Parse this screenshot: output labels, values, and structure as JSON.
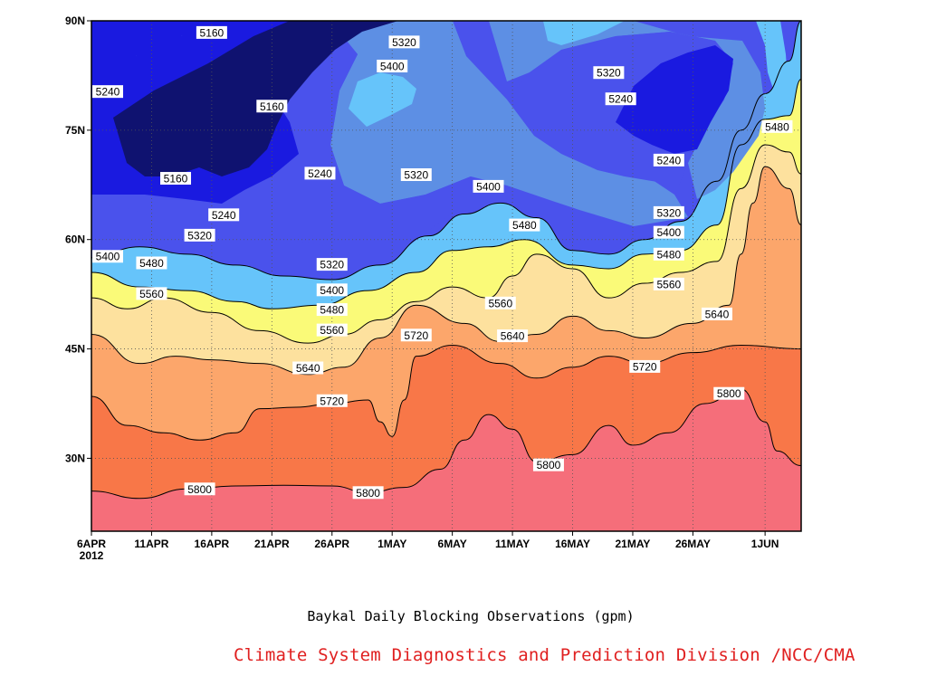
{
  "chart_data": {
    "type": "heatmap",
    "subtype": "filled-contour (latitude-time section)",
    "title": "Baykal Daily Blocking Observations (gpm)",
    "credit": "Climate System Diagnostics and Prediction Division /NCC/CMA",
    "x_axis": {
      "quantity": "date",
      "range": [
        "2012-04-06",
        "2012-06-04"
      ],
      "ticks": [
        "6APR",
        "11APR",
        "16APR",
        "21APR",
        "26APR",
        "1MAY",
        "6MAY",
        "11MAY",
        "16MAY",
        "21MAY",
        "26MAY",
        "1JUN"
      ],
      "tick_dates": [
        "2012-04-06",
        "2012-04-11",
        "2012-04-16",
        "2012-04-21",
        "2012-04-26",
        "2012-05-01",
        "2012-05-06",
        "2012-05-11",
        "2012-05-16",
        "2012-05-21",
        "2012-05-26",
        "2012-06-01"
      ],
      "year_label": "2012"
    },
    "y_axis": {
      "quantity": "latitude",
      "range_deg_n": [
        20,
        90
      ],
      "ticks": [
        "30N",
        "45N",
        "60N",
        "75N",
        "90N"
      ],
      "tick_values": [
        30,
        45,
        60,
        75,
        90
      ]
    },
    "grid": "dotted",
    "contour_levels": [
      5160,
      5240,
      5320,
      5400,
      5480,
      5560,
      5640,
      5720,
      5800
    ],
    "fill_colors": [
      "#0f1270",
      "#1a1ae0",
      "#4a52ec",
      "#5d8fe4",
      "#66c4fa",
      "#fafa78",
      "#fde19e",
      "#fca66b",
      "#f87748",
      "#f56e7a"
    ],
    "contour_lines": [
      {
        "level": 5800,
        "points": [
          [
            "2012-04-06",
            25.5
          ],
          [
            "2012-04-10",
            24.5
          ],
          [
            "2012-04-14",
            25.8
          ],
          [
            "2012-04-18",
            26.2
          ],
          [
            "2012-04-22",
            26.3
          ],
          [
            "2012-04-26",
            26.2
          ],
          [
            "2012-04-29",
            25.3
          ],
          [
            "2012-05-02",
            26
          ],
          [
            "2012-05-05",
            28.5
          ],
          [
            "2012-05-07",
            32.5
          ],
          [
            "2012-05-09",
            36
          ],
          [
            "2012-05-11",
            34
          ],
          [
            "2012-05-13",
            29.5
          ],
          [
            "2012-05-16",
            30.5
          ],
          [
            "2012-05-19",
            34.5
          ],
          [
            "2012-05-21",
            31.8
          ],
          [
            "2012-05-24",
            33.5
          ],
          [
            "2012-05-27",
            37.5
          ],
          [
            "2012-05-30",
            39.5
          ],
          [
            "2012-06-01",
            35
          ],
          [
            "2012-06-02",
            31
          ],
          [
            "2012-06-04",
            29
          ]
        ]
      },
      {
        "level": 5720,
        "points": [
          [
            "2012-04-06",
            38.5
          ],
          [
            "2012-04-09",
            34.5
          ],
          [
            "2012-04-12",
            33.5
          ],
          [
            "2012-04-15",
            32.5
          ],
          [
            "2012-04-18",
            33.5
          ],
          [
            "2012-04-20",
            36.8
          ],
          [
            "2012-04-23",
            37
          ],
          [
            "2012-04-26",
            37.5
          ],
          [
            "2012-04-29",
            38
          ],
          [
            "2012-04-30",
            35
          ],
          [
            "2012-05-01",
            33
          ],
          [
            "2012-05-02",
            38
          ],
          [
            "2012-05-03",
            44
          ],
          [
            "2012-05-06",
            45.5
          ],
          [
            "2012-05-10",
            43
          ],
          [
            "2012-05-13",
            41
          ],
          [
            "2012-05-16",
            42.5
          ],
          [
            "2012-05-19",
            44
          ],
          [
            "2012-05-22",
            43
          ],
          [
            "2012-05-26",
            44.5
          ],
          [
            "2012-05-30",
            45.5
          ],
          [
            "2012-06-04",
            45
          ]
        ]
      },
      {
        "level": 5640,
        "points": [
          [
            "2012-04-06",
            47
          ],
          [
            "2012-04-10",
            43
          ],
          [
            "2012-04-13",
            44
          ],
          [
            "2012-04-16",
            43.5
          ],
          [
            "2012-04-20",
            43
          ],
          [
            "2012-04-24",
            41.5
          ],
          [
            "2012-04-27",
            42.5
          ],
          [
            "2012-04-30",
            46.5
          ],
          [
            "2012-05-03",
            51
          ],
          [
            "2012-05-07",
            48.5
          ],
          [
            "2012-05-10",
            46
          ],
          [
            "2012-05-13",
            47
          ],
          [
            "2012-05-16",
            49.5
          ],
          [
            "2012-05-19",
            47.5
          ],
          [
            "2012-05-22",
            46.5
          ],
          [
            "2012-05-26",
            48.5
          ],
          [
            "2012-05-29",
            51
          ],
          [
            "2012-05-30",
            58
          ],
          [
            "2012-05-31",
            65
          ],
          [
            "2012-06-01",
            70
          ],
          [
            "2012-06-03",
            67
          ],
          [
            "2012-06-04",
            62
          ]
        ]
      },
      {
        "level": 5560,
        "points": [
          [
            "2012-04-06",
            52
          ],
          [
            "2012-04-09",
            50.5
          ],
          [
            "2012-04-12",
            52
          ],
          [
            "2012-04-16",
            50
          ],
          [
            "2012-04-20",
            47.5
          ],
          [
            "2012-04-24",
            45.8
          ],
          [
            "2012-04-27",
            47
          ],
          [
            "2012-04-30",
            49
          ],
          [
            "2012-05-03",
            51.5
          ],
          [
            "2012-05-06",
            53.5
          ],
          [
            "2012-05-09",
            52
          ],
          [
            "2012-05-11",
            55
          ],
          [
            "2012-05-13",
            58
          ],
          [
            "2012-05-16",
            56
          ],
          [
            "2012-05-19",
            52
          ],
          [
            "2012-05-22",
            54
          ],
          [
            "2012-05-25",
            55.5
          ],
          [
            "2012-05-28",
            57
          ],
          [
            "2012-05-30",
            67
          ],
          [
            "2012-06-01",
            73
          ],
          [
            "2012-06-03",
            72
          ],
          [
            "2012-06-04",
            69
          ]
        ]
      },
      {
        "level": 5480,
        "points": [
          [
            "2012-04-06",
            55.5
          ],
          [
            "2012-04-10",
            53.5
          ],
          [
            "2012-04-14",
            53
          ],
          [
            "2012-04-18",
            51.5
          ],
          [
            "2012-04-21",
            50.5
          ],
          [
            "2012-04-25",
            51
          ],
          [
            "2012-04-29",
            53
          ],
          [
            "2012-05-03",
            55.5
          ],
          [
            "2012-05-06",
            58.5
          ],
          [
            "2012-05-09",
            59
          ],
          [
            "2012-05-12",
            60
          ],
          [
            "2012-05-16",
            56.5
          ],
          [
            "2012-05-19",
            56
          ],
          [
            "2012-05-22",
            58
          ],
          [
            "2012-05-25",
            58.5
          ],
          [
            "2012-05-28",
            62
          ],
          [
            "2012-05-30",
            73
          ],
          [
            "2012-06-01",
            76.5
          ],
          [
            "2012-06-03",
            77
          ],
          [
            "2012-06-04",
            82
          ]
        ]
      },
      {
        "level": 5400,
        "points": [
          [
            "2012-04-06",
            57.5
          ],
          [
            "2012-04-10",
            59
          ],
          [
            "2012-04-14",
            58
          ],
          [
            "2012-04-18",
            56.5
          ],
          [
            "2012-04-22",
            55
          ],
          [
            "2012-04-26",
            54.5
          ],
          [
            "2012-04-30",
            56.5
          ],
          [
            "2012-05-04",
            60.5
          ],
          [
            "2012-05-07",
            63.5
          ],
          [
            "2012-05-10",
            65
          ],
          [
            "2012-05-13",
            63
          ],
          [
            "2012-05-16",
            58.5
          ],
          [
            "2012-05-19",
            58
          ],
          [
            "2012-05-22",
            60
          ],
          [
            "2012-05-25",
            62.5
          ],
          [
            "2012-05-28",
            68
          ],
          [
            "2012-05-30",
            75
          ],
          [
            "2012-06-01",
            80
          ],
          [
            "2012-06-03",
            84.5
          ],
          [
            "2012-06-04",
            90
          ]
        ]
      }
    ],
    "contour_labels": [
      {
        "text": "5160",
        "date": "2012-04-16",
        "lat": 88.4
      },
      {
        "text": "5320",
        "date": "2012-05-02",
        "lat": 87.1
      },
      {
        "text": "5400",
        "date": "2012-05-01",
        "lat": 83.8
      },
      {
        "text": "5240",
        "date": "2012-04-06",
        "lat": 80.3
      },
      {
        "text": "5160",
        "date": "2012-04-21",
        "lat": 78.3
      },
      {
        "text": "5320",
        "date": "2012-05-19",
        "lat": 82.9
      },
      {
        "text": "5240",
        "date": "2012-05-20",
        "lat": 79.3
      },
      {
        "text": "5480",
        "date": "2012-06-02",
        "lat": 75.5
      },
      {
        "text": "5240",
        "date": "2012-05-24",
        "lat": 70.9
      },
      {
        "text": "5160",
        "date": "2012-04-13",
        "lat": 68.4
      },
      {
        "text": "5240",
        "date": "2012-04-25",
        "lat": 69.1
      },
      {
        "text": "5320",
        "date": "2012-05-03",
        "lat": 68.9
      },
      {
        "text": "5400",
        "date": "2012-05-09",
        "lat": 67.3
      },
      {
        "text": "5320",
        "date": "2012-05-24",
        "lat": 63.7
      },
      {
        "text": "5240",
        "date": "2012-04-17",
        "lat": 63.4
      },
      {
        "text": "5400",
        "date": "2012-05-24",
        "lat": 61.0
      },
      {
        "text": "5480",
        "date": "2012-05-12",
        "lat": 62.0
      },
      {
        "text": "5320",
        "date": "2012-04-15",
        "lat": 60.6
      },
      {
        "text": "5480",
        "date": "2012-05-24",
        "lat": 58.0
      },
      {
        "text": "5400",
        "date": "2012-04-06",
        "lat": 57.7
      },
      {
        "text": "5480",
        "date": "2012-04-11",
        "lat": 56.8
      },
      {
        "text": "5320",
        "date": "2012-04-26",
        "lat": 56.6
      },
      {
        "text": "5560",
        "date": "2012-05-24",
        "lat": 53.9
      },
      {
        "text": "5560",
        "date": "2012-04-11",
        "lat": 52.6
      },
      {
        "text": "5400",
        "date": "2012-04-26",
        "lat": 53.1
      },
      {
        "text": "5560",
        "date": "2012-05-10",
        "lat": 51.3
      },
      {
        "text": "5480",
        "date": "2012-04-26",
        "lat": 50.4
      },
      {
        "text": "5640",
        "date": "2012-05-28",
        "lat": 49.8
      },
      {
        "text": "5560",
        "date": "2012-04-26",
        "lat": 47.6
      },
      {
        "text": "5720",
        "date": "2012-05-03",
        "lat": 46.9
      },
      {
        "text": "5640",
        "date": "2012-05-11",
        "lat": 46.8
      },
      {
        "text": "5640",
        "date": "2012-04-24",
        "lat": 42.4
      },
      {
        "text": "5720",
        "date": "2012-05-22",
        "lat": 42.6
      },
      {
        "text": "5720",
        "date": "2012-04-26",
        "lat": 37.9
      },
      {
        "text": "5800",
        "date": "2012-05-29",
        "lat": 38.9
      },
      {
        "text": "5800",
        "date": "2012-05-14",
        "lat": 29.1
      },
      {
        "text": "5800",
        "date": "2012-04-15",
        "lat": 25.8
      },
      {
        "text": "5800",
        "date": "2012-04-29",
        "lat": 25.3
      }
    ],
    "northern_region_note_free_shapes": true
  }
}
